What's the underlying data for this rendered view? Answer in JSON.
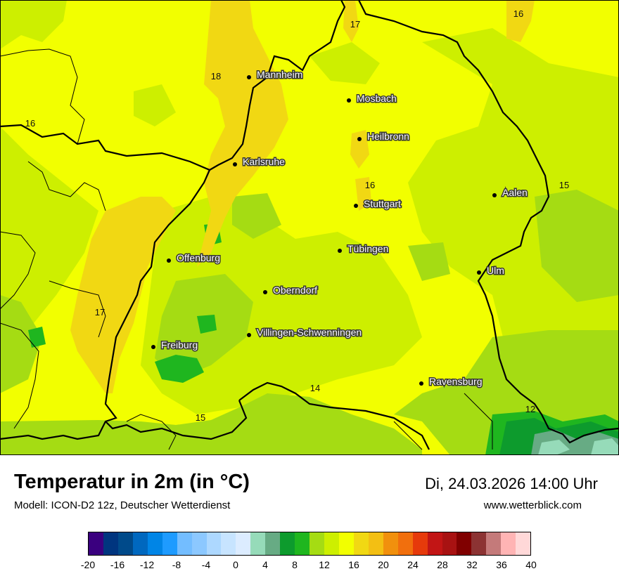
{
  "title": "Temperatur in 2m (in °C)",
  "model": "Modell: ICON-D2 12z, Deutscher Wetterdienst",
  "datetime": "Di, 24.03.2026 14:00 Uhr",
  "website": "www.wetterblick.com",
  "colors": {
    "land_base": "#f2ff00",
    "warm_yellow": "#f1d813",
    "light_green": "#cdef00",
    "mid_green": "#a5dc13",
    "green": "#1fb61f",
    "dark_green": "#0d9b2d",
    "teal": "#67ab84",
    "light_teal": "#96dbb9"
  },
  "cities": [
    {
      "name": "Mannheim"
    },
    {
      "name": "Mosbach"
    },
    {
      "name": "Heilbronn"
    },
    {
      "name": "Karlsruhe"
    },
    {
      "name": "Stuttgart"
    },
    {
      "name": "Aalen"
    },
    {
      "name": "Tübingen"
    },
    {
      "name": "Offenburg"
    },
    {
      "name": "Ulm"
    },
    {
      "name": "Oberndorf"
    },
    {
      "name": "Villingen-Schwenningen"
    },
    {
      "name": "Freiburg"
    },
    {
      "name": "Ravensburg"
    }
  ],
  "isotherm_labels": [
    "16",
    "17",
    "18",
    "16",
    "16",
    "15",
    "17",
    "14",
    "12",
    "15"
  ],
  "legend": {
    "colors": [
      "#3a007f",
      "#00357f",
      "#004a8a",
      "#0068bf",
      "#0085e6",
      "#1e9bff",
      "#73bdff",
      "#8cc8ff",
      "#add8ff",
      "#c7e4ff",
      "#dcecff",
      "#96dbb9",
      "#67ab84",
      "#0d9b2d",
      "#1fb61f",
      "#a5dc13",
      "#cdef00",
      "#f2ff00",
      "#f1d813",
      "#f3bf13",
      "#f1900d",
      "#f16f0d",
      "#e63a0b",
      "#c21515",
      "#a81212",
      "#800000",
      "#8c3333",
      "#c47a7a",
      "#ffb4b4",
      "#ffd8d8"
    ],
    "ticks": [
      "-20",
      "-16",
      "-12",
      "-8",
      "-4",
      "0",
      "4",
      "8",
      "12",
      "16",
      "20",
      "24",
      "28",
      "32",
      "36",
      "40"
    ]
  }
}
